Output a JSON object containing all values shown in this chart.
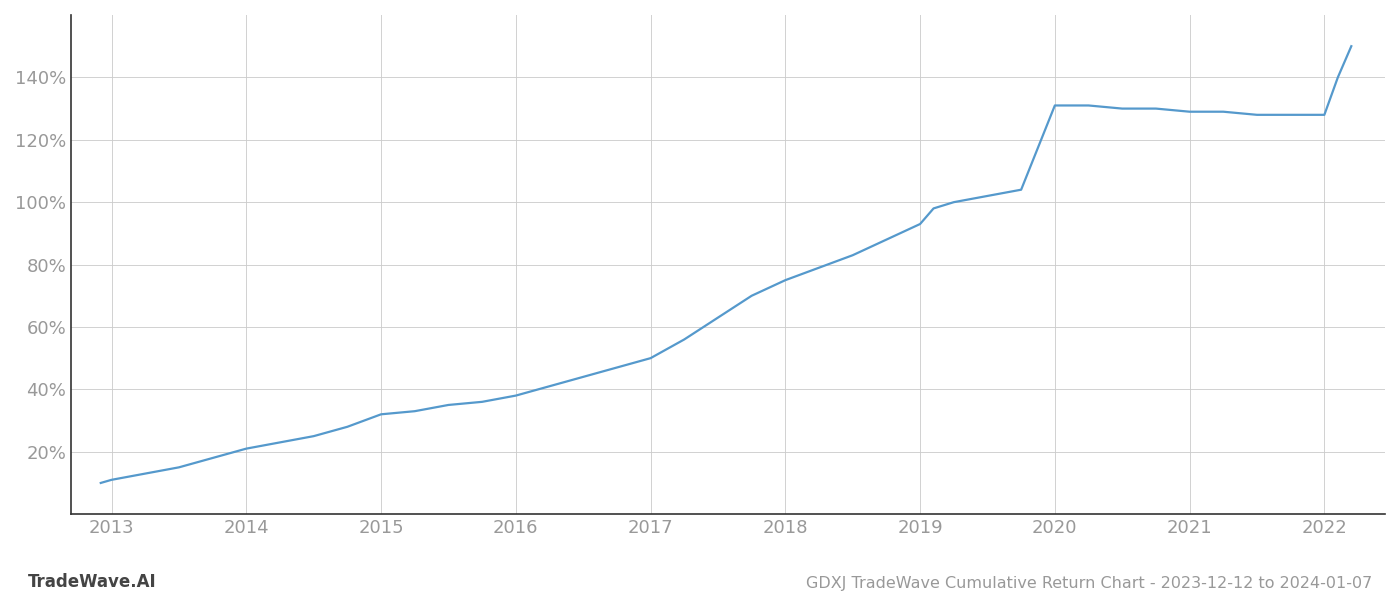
{
  "title": "GDXJ TradeWave Cumulative Return Chart - 2023-12-12 to 2024-01-07",
  "watermark": "TradeWave.AI",
  "line_color": "#5599cc",
  "background_color": "#ffffff",
  "grid_color": "#cccccc",
  "x_years": [
    2013,
    2014,
    2015,
    2016,
    2017,
    2018,
    2019,
    2020,
    2021,
    2022
  ],
  "x_values": [
    2012.92,
    2013.0,
    2013.25,
    2013.5,
    2013.75,
    2014.0,
    2014.25,
    2014.5,
    2014.75,
    2015.0,
    2015.25,
    2015.5,
    2015.75,
    2016.0,
    2016.25,
    2016.5,
    2016.75,
    2017.0,
    2017.25,
    2017.5,
    2017.75,
    2018.0,
    2018.25,
    2018.5,
    2018.75,
    2019.0,
    2019.1,
    2019.25,
    2019.5,
    2019.75,
    2020.0,
    2020.25,
    2020.5,
    2020.75,
    2021.0,
    2021.25,
    2021.5,
    2021.75,
    2022.0,
    2022.1,
    2022.2
  ],
  "y_values": [
    10,
    11,
    13,
    15,
    18,
    21,
    23,
    25,
    28,
    32,
    33,
    35,
    36,
    38,
    41,
    44,
    47,
    50,
    56,
    63,
    70,
    75,
    79,
    83,
    88,
    93,
    98,
    100,
    102,
    104,
    131,
    131,
    130,
    130,
    129,
    129,
    128,
    128,
    128,
    140,
    150
  ],
  "ylim": [
    0,
    160
  ],
  "yticks": [
    20,
    40,
    60,
    80,
    100,
    120,
    140
  ],
  "xlim_left": 2012.7,
  "xlim_right": 2022.45,
  "tick_label_color": "#999999",
  "axis_color": "#333333",
  "title_color": "#999999",
  "watermark_color": "#444444",
  "title_fontsize": 11.5,
  "tick_fontsize": 13,
  "watermark_fontsize": 12,
  "line_width": 1.6,
  "left_spine_color": "#333333",
  "bottom_spine_color": "#333333"
}
